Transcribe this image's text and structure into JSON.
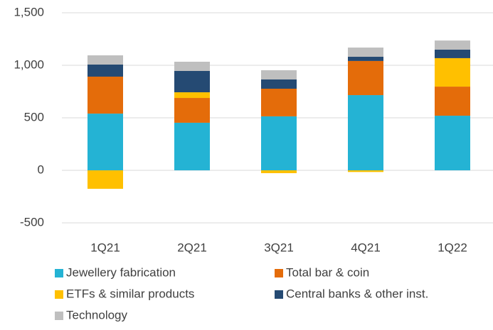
{
  "chart_data": {
    "type": "stacked_bar",
    "categories": [
      "1Q21",
      "2Q21",
      "3Q21",
      "4Q21",
      "1Q22"
    ],
    "series": [
      {
        "name": "Jewellery fabrication",
        "color": "#24b3d4",
        "values": [
          540,
          453,
          514,
          716,
          520
        ]
      },
      {
        "name": "Total bar & coin",
        "color": "#e46c0a",
        "values": [
          352,
          236,
          263,
          325,
          277
        ]
      },
      {
        "name": "ETFs & similar products",
        "color": "#ffc000",
        "values": [
          -176,
          54,
          -27,
          -16,
          271
        ]
      },
      {
        "name": "Central banks & other inst.",
        "color": "#254a73",
        "values": [
          115,
          203,
          88,
          40,
          81
        ]
      },
      {
        "name": "Technology",
        "color": "#bfbfbf",
        "values": [
          88,
          88,
          88,
          88,
          87
        ]
      }
    ],
    "ylim": [
      -500,
      1500
    ],
    "yticks": [
      -500,
      0,
      500,
      {
        "value": 1000,
        "label": "1,000"
      },
      {
        "value": 1500,
        "label": "1,500"
      }
    ],
    "grid": true,
    "legend": "bottom"
  }
}
